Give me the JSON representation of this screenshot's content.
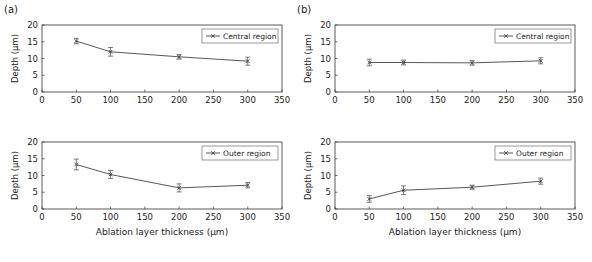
{
  "chart_data": [
    {
      "type": "line",
      "title": "(a)",
      "ylabel": "Depth (μm)",
      "x": [
        50,
        100,
        200,
        300
      ],
      "series": [
        {
          "name": "Central region",
          "color": "#444444",
          "marker": "x",
          "values": [
            15.2,
            12.0,
            10.5,
            9.2
          ],
          "errors": [
            0.8,
            1.3,
            0.7,
            1.2
          ]
        }
      ],
      "xlim": [
        0,
        350
      ],
      "xticks": [
        0,
        50,
        100,
        150,
        200,
        250,
        300,
        350
      ],
      "ylim": [
        0,
        20
      ],
      "yticks": [
        0,
        5,
        10,
        15,
        20
      ],
      "legend": "upper right"
    },
    {
      "type": "line",
      "xlabel": "Ablation layer thickness (μm)",
      "ylabel": "Depth (μm)",
      "x": [
        50,
        100,
        200,
        300
      ],
      "series": [
        {
          "name": "Outer region",
          "color": "#444444",
          "marker": "x",
          "values": [
            13.3,
            10.3,
            6.3,
            7.1
          ],
          "errors": [
            1.6,
            1.2,
            1.2,
            0.8
          ]
        }
      ],
      "xlim": [
        0,
        350
      ],
      "xticks": [
        0,
        50,
        100,
        150,
        200,
        250,
        300,
        350
      ],
      "ylim": [
        0,
        20
      ],
      "yticks": [
        0,
        5,
        10,
        15,
        20
      ],
      "legend": "upper right"
    },
    {
      "type": "line",
      "title": "(b)",
      "ylabel": "Depth (μm)",
      "x": [
        50,
        100,
        200,
        300
      ],
      "series": [
        {
          "name": "Central region",
          "color": "#444444",
          "marker": "x",
          "values": [
            8.8,
            8.8,
            8.7,
            9.3
          ],
          "errors": [
            1.0,
            0.7,
            0.7,
            0.9
          ]
        }
      ],
      "xlim": [
        0,
        350
      ],
      "xticks": [
        0,
        50,
        100,
        150,
        200,
        250,
        300,
        350
      ],
      "ylim": [
        0,
        20
      ],
      "yticks": [
        0,
        5,
        10,
        15,
        20
      ],
      "legend": "upper right"
    },
    {
      "type": "line",
      "xlabel": "Ablation layer thickness (μm)",
      "ylabel": "Depth (μm)",
      "x": [
        50,
        100,
        200,
        300
      ],
      "series": [
        {
          "name": "Outer region",
          "color": "#444444",
          "marker": "x",
          "values": [
            3.0,
            5.6,
            6.5,
            8.3
          ],
          "errors": [
            1.0,
            1.3,
            0.6,
            0.9
          ]
        }
      ],
      "xlim": [
        0,
        350
      ],
      "xticks": [
        0,
        50,
        100,
        150,
        200,
        250,
        300,
        350
      ],
      "ylim": [
        0,
        20
      ],
      "yticks": [
        0,
        5,
        10,
        15,
        20
      ],
      "legend": "upper right"
    }
  ]
}
